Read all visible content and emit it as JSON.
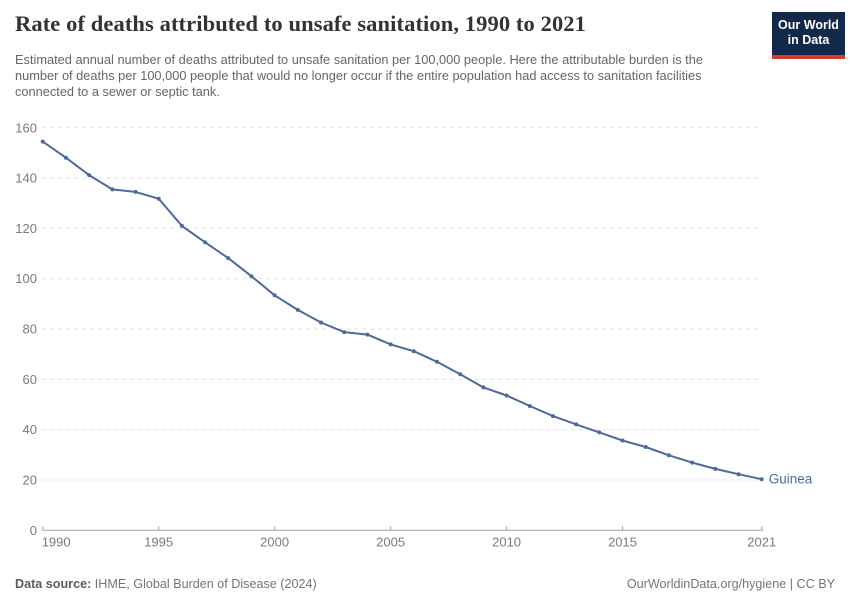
{
  "header": {
    "title": "Rate of deaths attributed to unsafe sanitation, 1990 to 2021",
    "subtitle": "Estimated annual number of deaths attributed to unsafe sanitation per 100,000 people. Here the attributable burden is the number of deaths per 100,000 people that would no longer occur if the entire population had access to sanitation facilities connected to a sewer or septic tank.",
    "logo": {
      "line1": "Our World",
      "line2": "in Data",
      "bg_color": "#12294B",
      "accent_color": "#D93B2B"
    }
  },
  "chart_data": {
    "type": "line",
    "title": "Rate of deaths attributed to unsafe sanitation, 1990 to 2021",
    "xlabel": "",
    "ylabel": "",
    "xlim": [
      1990,
      2021
    ],
    "ylim": [
      0,
      160
    ],
    "x_ticks": [
      1990,
      1995,
      2000,
      2005,
      2010,
      2015,
      2021
    ],
    "y_ticks": [
      0,
      20,
      40,
      60,
      80,
      100,
      120,
      140,
      160
    ],
    "grid": "horizontal-dashed",
    "legend": "end-of-line-label",
    "grid_color": "#e2e2e2",
    "axis_color": "#a3a3a3",
    "tick_label_color": "#7b7b7b",
    "series": [
      {
        "name": "Guinea",
        "color": "#4C6A9C",
        "x": [
          1990,
          1991,
          1992,
          1993,
          1994,
          1995,
          1996,
          1997,
          1998,
          1999,
          2000,
          2001,
          2002,
          2003,
          2004,
          2005,
          2006,
          2007,
          2008,
          2009,
          2010,
          2011,
          2012,
          2013,
          2014,
          2015,
          2016,
          2017,
          2018,
          2019,
          2020,
          2021
        ],
        "values": [
          154.5,
          148.1,
          141.2,
          135.5,
          134.5,
          131.8,
          121.0,
          114.5,
          108.2,
          101.0,
          93.4,
          87.6,
          82.6,
          78.8,
          77.8,
          73.9,
          71.2,
          67.0,
          62.0,
          56.8,
          53.6,
          49.4,
          45.4,
          42.1,
          38.9,
          35.7,
          33.1,
          29.8,
          26.9,
          24.4,
          22.3,
          20.3
        ]
      }
    ]
  },
  "footer": {
    "source_label": "Data source:",
    "source_text": "IHME, Global Burden of Disease (2024)",
    "link_text": "OurWorldinData.org/hygiene | CC BY"
  }
}
